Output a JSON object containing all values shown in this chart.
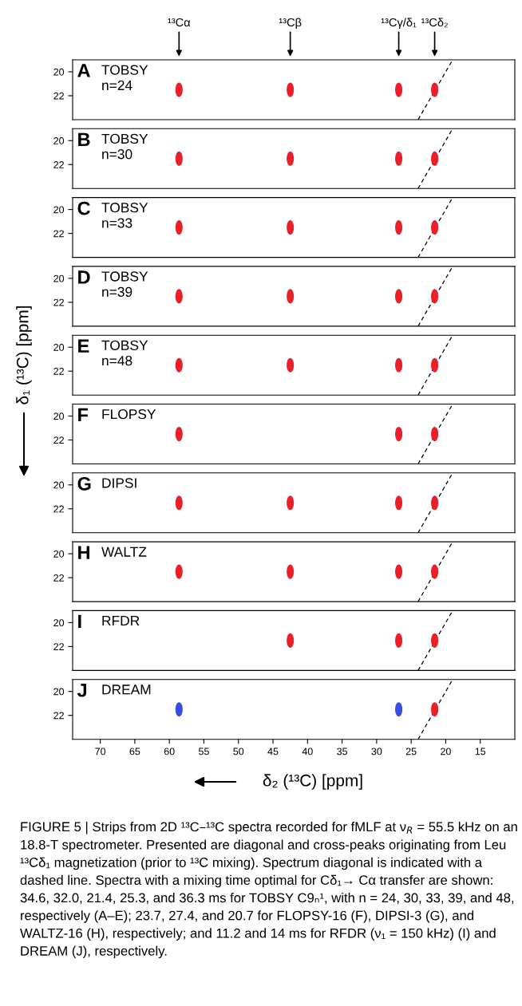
{
  "chart_data": [
    {
      "type": "scatter",
      "title": "A",
      "subtitle": "TOBSY\nn=24",
      "xlim": [
        74,
        10
      ],
      "ylim": [
        24,
        19
      ],
      "yticks": [
        20,
        22
      ],
      "tick_labels": "y",
      "annotations": [
        "¹³Cα",
        "¹³Cβ",
        "¹³Cγ/δ₁",
        "¹³Cδ₂"
      ],
      "series": [
        {
          "x": [
            58.6,
            42.5,
            26.8,
            21.6
          ],
          "values": [
            21.5,
            21.5,
            21.5,
            21.5
          ],
          "colors": [
            "#e8202a",
            "#e8202a",
            "#e8202a",
            "#e8202a"
          ]
        },
        {
          "type": "line",
          "x": [
            24,
            19
          ],
          "values": [
            24,
            19
          ],
          "color": "#000000",
          "line_style": "dashed"
        }
      ]
    },
    {
      "type": "scatter",
      "title": "B",
      "subtitle": "TOBSY\nn=30",
      "xlim": [
        74,
        10
      ],
      "ylim": [
        24,
        19
      ],
      "yticks": [
        20,
        22
      ],
      "tick_labels": "y",
      "series": [
        {
          "x": [
            58.6,
            42.5,
            26.8,
            21.6
          ],
          "values": [
            21.5,
            21.5,
            21.5,
            21.5
          ],
          "colors": [
            "#e8202a",
            "#e8202a",
            "#e8202a",
            "#e8202a"
          ]
        },
        {
          "type": "line",
          "x": [
            24,
            19
          ],
          "values": [
            24,
            19
          ],
          "color": "#000000",
          "line_style": "dashed"
        }
      ]
    },
    {
      "type": "scatter",
      "title": "C",
      "subtitle": "TOBSY\nn=33",
      "xlim": [
        74,
        10
      ],
      "ylim": [
        24,
        19
      ],
      "yticks": [
        20,
        22
      ],
      "tick_labels": "y",
      "series": [
        {
          "x": [
            58.6,
            42.5,
            26.8,
            21.6
          ],
          "values": [
            21.5,
            21.5,
            21.5,
            21.5
          ],
          "colors": [
            "#e8202a",
            "#e8202a",
            "#e8202a",
            "#e8202a"
          ]
        },
        {
          "type": "line",
          "x": [
            24,
            19
          ],
          "values": [
            24,
            19
          ],
          "color": "#000000",
          "line_style": "dashed"
        }
      ]
    },
    {
      "type": "scatter",
      "title": "D",
      "subtitle": "TOBSY\nn=39",
      "xlim": [
        74,
        10
      ],
      "ylim": [
        24,
        19
      ],
      "yticks": [
        20,
        22
      ],
      "tick_labels": "y",
      "series": [
        {
          "x": [
            58.6,
            42.5,
            26.8,
            21.6
          ],
          "values": [
            21.5,
            21.5,
            21.5,
            21.5
          ],
          "colors": [
            "#e8202a",
            "#e8202a",
            "#e8202a",
            "#e8202a"
          ]
        },
        {
          "type": "line",
          "x": [
            24,
            19
          ],
          "values": [
            24,
            19
          ],
          "color": "#000000",
          "line_style": "dashed"
        }
      ]
    },
    {
      "type": "scatter",
      "title": "E",
      "subtitle": "TOBSY\nn=48",
      "ylabel": "δ₁ (¹³C) [ppm]",
      "xlim": [
        74,
        10
      ],
      "ylim": [
        24,
        19
      ],
      "yticks": [
        20,
        22
      ],
      "tick_labels": "y",
      "series": [
        {
          "x": [
            58.6,
            42.5,
            26.8,
            21.6
          ],
          "values": [
            21.5,
            21.5,
            21.5,
            21.5
          ],
          "colors": [
            "#e8202a",
            "#e8202a",
            "#e8202a",
            "#e8202a"
          ]
        },
        {
          "type": "line",
          "x": [
            24,
            19
          ],
          "values": [
            24,
            19
          ],
          "color": "#000000",
          "line_style": "dashed"
        }
      ]
    },
    {
      "type": "scatter",
      "title": "F",
      "subtitle": "FLOPSY",
      "xlim": [
        74,
        10
      ],
      "ylim": [
        24,
        19
      ],
      "yticks": [
        20,
        22
      ],
      "tick_labels": "y",
      "series": [
        {
          "x": [
            58.6,
            26.8,
            21.6
          ],
          "values": [
            21.5,
            21.5,
            21.5
          ],
          "colors": [
            "#e8202a",
            "#e8202a",
            "#e8202a"
          ]
        },
        {
          "type": "line",
          "x": [
            24,
            19
          ],
          "values": [
            24,
            19
          ],
          "color": "#000000",
          "line_style": "dashed"
        }
      ]
    },
    {
      "type": "scatter",
      "title": "G",
      "subtitle": "DIPSI",
      "xlim": [
        74,
        10
      ],
      "ylim": [
        24,
        19
      ],
      "yticks": [
        20,
        22
      ],
      "tick_labels": "y",
      "series": [
        {
          "x": [
            58.6,
            42.5,
            26.8,
            21.6
          ],
          "values": [
            21.5,
            21.5,
            21.5,
            21.5
          ],
          "colors": [
            "#e8202a",
            "#e8202a",
            "#e8202a",
            "#e8202a"
          ]
        },
        {
          "type": "line",
          "x": [
            24,
            19
          ],
          "values": [
            24,
            19
          ],
          "color": "#000000",
          "line_style": "dashed"
        }
      ]
    },
    {
      "type": "scatter",
      "title": "H",
      "subtitle": "WALTZ",
      "xlim": [
        74,
        10
      ],
      "ylim": [
        24,
        19
      ],
      "yticks": [
        20,
        22
      ],
      "tick_labels": "y",
      "series": [
        {
          "x": [
            58.6,
            42.5,
            26.8,
            21.6
          ],
          "values": [
            21.5,
            21.5,
            21.5,
            21.5
          ],
          "colors": [
            "#e8202a",
            "#e8202a",
            "#e8202a",
            "#e8202a"
          ]
        },
        {
          "type": "line",
          "x": [
            24,
            19
          ],
          "values": [
            24,
            19
          ],
          "color": "#000000",
          "line_style": "dashed"
        }
      ]
    },
    {
      "type": "scatter",
      "title": "I",
      "subtitle": "RFDR",
      "xlim": [
        74,
        10
      ],
      "ylim": [
        24,
        19
      ],
      "yticks": [
        20,
        22
      ],
      "tick_labels": "y",
      "series": [
        {
          "x": [
            42.5,
            26.8,
            21.6
          ],
          "values": [
            21.5,
            21.5,
            21.5
          ],
          "colors": [
            "#e8202a",
            "#e8202a",
            "#e8202a"
          ]
        },
        {
          "type": "line",
          "x": [
            24,
            19
          ],
          "values": [
            24,
            19
          ],
          "color": "#000000",
          "line_style": "dashed"
        }
      ]
    },
    {
      "type": "scatter",
      "title": "J",
      "subtitle": "DREAM",
      "xlabel": "δ₂ (¹³C) [ppm]",
      "xlim": [
        74,
        10
      ],
      "xticks": [
        70,
        65,
        60,
        55,
        50,
        45,
        40,
        35,
        30,
        25,
        20,
        15
      ],
      "ylim": [
        24,
        19
      ],
      "yticks": [
        20,
        22
      ],
      "annotations": [
        "FIGURE 5 | Strips from 2D ¹³C–¹³C spectra recorded for fMLF at ν$_{R}$ = 55.5 kHz on an 18.8-T spectrometer. Presented are diagonal and cross-peaks originating from Leu ¹³Cδ₁ magnetization (prior to ¹³C mixing). Spectrum diagonal is indicated with a dashed line. Spectra with a mixing time optimal for Cδ₁→ Cα transfer are shown: 34.6, 32.0, 21.4, 25.3, and 36.3 ms for TOBSY C9ₙ¹, with n = 24, 30, 33, 39, and 48, respectively (A–E); 23.7, 27.4, and 20.7 for FLOPSY-16 (F), DIPSI-3 (G), and WALTZ-16 (H), respectively; and 11.2 and 14 ms for RFDR (ν₁ = 150 kHz) (I) and DREAM (J), respectively."
      ],
      "series": [
        {
          "x": [
            58.6,
            26.8,
            21.6
          ],
          "values": [
            21.5,
            21.5,
            21.5
          ],
          "colors": [
            "#3a4fe0",
            "#3a4fe0",
            "#e8202a"
          ]
        },
        {
          "type": "line",
          "x": [
            24,
            19
          ],
          "values": [
            24,
            19
          ],
          "color": "#000000",
          "line_style": "dashed"
        }
      ]
    }
  ]
}
